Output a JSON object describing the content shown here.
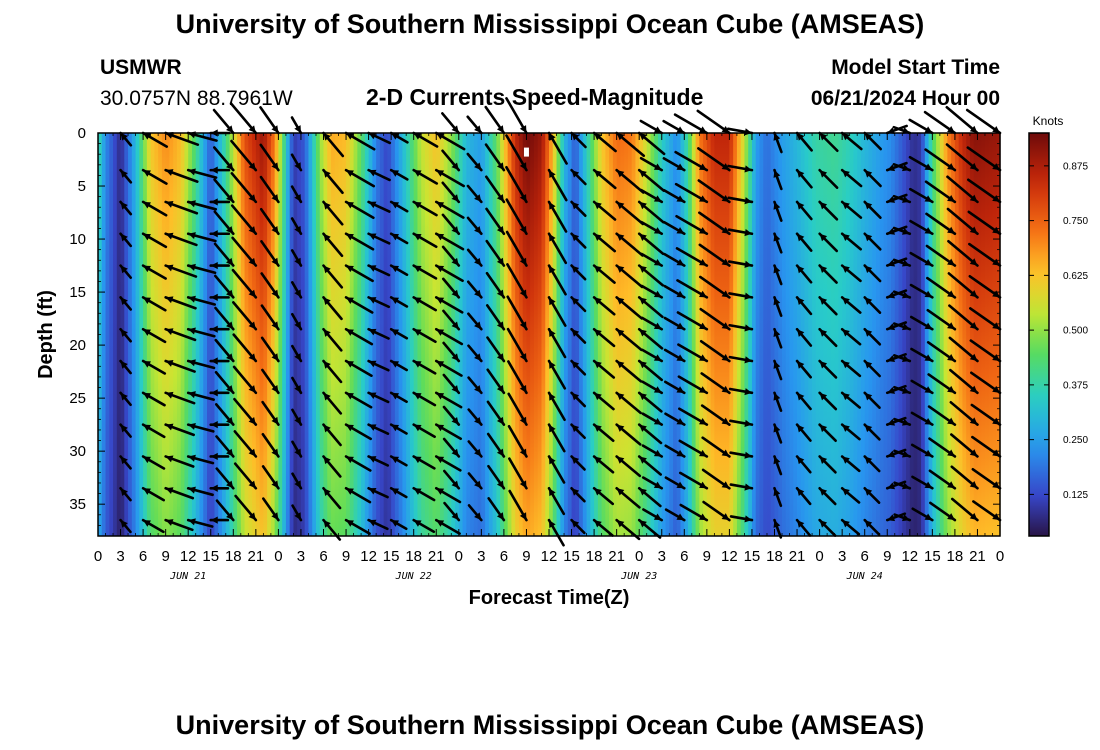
{
  "header": {
    "title": "University of Southern Mississippi Ocean Cube (AMSEAS)",
    "station": "USMWR",
    "coords": "30.0757N  88.7961W",
    "chart_label": "2-D Currents Speed-Magnitude",
    "start_label": "Model Start Time",
    "start_value": "06/21/2024 Hour 00"
  },
  "footer": {
    "title": "University of Southern Mississippi Ocean Cube (AMSEAS)"
  },
  "colors": {
    "arrow": "#000000",
    "frame": "#000000"
  },
  "chart_data": {
    "type": "heatmap",
    "title": "2-D Currents Speed-Magnitude",
    "xlabel": "Forecast Time(Z)",
    "ylabel": "Depth (ft)",
    "xlim": [
      0,
      120
    ],
    "ylim": [
      0,
      38
    ],
    "y_inverted": true,
    "x_ticks": [
      0,
      3,
      6,
      9,
      12,
      15,
      18,
      21,
      24,
      27,
      30,
      33,
      36,
      39,
      42,
      45,
      48,
      51,
      54,
      57,
      60,
      63,
      66,
      69,
      72,
      75,
      78,
      81,
      84,
      87,
      90,
      93,
      96,
      99,
      102,
      105,
      108,
      111,
      114,
      117,
      120
    ],
    "x_tick_labels": [
      "0",
      "3",
      "6",
      "9",
      "12",
      "15",
      "18",
      "21",
      "0",
      "3",
      "6",
      "9",
      "12",
      "15",
      "18",
      "21",
      "0",
      "3",
      "6",
      "9",
      "12",
      "15",
      "18",
      "21",
      "0",
      "3",
      "6",
      "9",
      "12",
      "15",
      "18",
      "21",
      "0",
      "3",
      "6",
      "9",
      "12",
      "15",
      "18",
      "21",
      "0"
    ],
    "y_ticks": [
      0,
      5,
      10,
      15,
      20,
      25,
      30,
      35
    ],
    "y_tick_labels": [
      "0",
      "5",
      "10",
      "15",
      "20",
      "25",
      "30",
      "35"
    ],
    "date_labels": [
      {
        "hour": 12,
        "label": "JUN 21"
      },
      {
        "hour": 42,
        "label": "JUN 22"
      },
      {
        "hour": 72,
        "label": "JUN 23"
      },
      {
        "hour": 102,
        "label": "JUN 24"
      }
    ],
    "colorbar": {
      "title": "Knots",
      "min": 0.03,
      "max": 0.95,
      "ticks": [
        0.125,
        0.25,
        0.375,
        0.5,
        0.625,
        0.75,
        0.875
      ],
      "tick_labels": [
        "0.125",
        "0.250",
        "0.375",
        "0.500",
        "0.625",
        "0.750",
        "0.875"
      ]
    },
    "speed_profile_surface": [
      {
        "h": 0,
        "v": 0.4
      },
      {
        "h": 1,
        "v": 0.22
      },
      {
        "h": 3,
        "v": 0.07
      },
      {
        "h": 5,
        "v": 0.3
      },
      {
        "h": 7,
        "v": 0.62
      },
      {
        "h": 9,
        "v": 0.7
      },
      {
        "h": 11,
        "v": 0.64
      },
      {
        "h": 13,
        "v": 0.42
      },
      {
        "h": 15,
        "v": 0.15
      },
      {
        "h": 17,
        "v": 0.4
      },
      {
        "h": 19.5,
        "v": 0.78
      },
      {
        "h": 22,
        "v": 0.9
      },
      {
        "h": 23.5,
        "v": 0.72
      },
      {
        "h": 25,
        "v": 0.35
      },
      {
        "h": 26,
        "v": 0.1
      },
      {
        "h": 27.5,
        "v": 0.15
      },
      {
        "h": 29.5,
        "v": 0.5
      },
      {
        "h": 31,
        "v": 0.66
      },
      {
        "h": 33,
        "v": 0.64
      },
      {
        "h": 35,
        "v": 0.45
      },
      {
        "h": 37,
        "v": 0.2
      },
      {
        "h": 38.5,
        "v": 0.12
      },
      {
        "h": 40.5,
        "v": 0.3
      },
      {
        "h": 43,
        "v": 0.55
      },
      {
        "h": 45,
        "v": 0.63
      },
      {
        "h": 47,
        "v": 0.5
      },
      {
        "h": 49,
        "v": 0.3
      },
      {
        "h": 51,
        "v": 0.25
      },
      {
        "h": 53,
        "v": 0.45
      },
      {
        "h": 55.5,
        "v": 0.85
      },
      {
        "h": 57,
        "v": 0.95
      },
      {
        "h": 59,
        "v": 0.9
      },
      {
        "h": 60.5,
        "v": 0.65
      },
      {
        "h": 62,
        "v": 0.3
      },
      {
        "h": 63.5,
        "v": 0.15
      },
      {
        "h": 65,
        "v": 0.35
      },
      {
        "h": 67,
        "v": 0.62
      },
      {
        "h": 69,
        "v": 0.74
      },
      {
        "h": 71,
        "v": 0.72
      },
      {
        "h": 73,
        "v": 0.56
      },
      {
        "h": 75,
        "v": 0.35
      },
      {
        "h": 77,
        "v": 0.22
      },
      {
        "h": 78.5,
        "v": 0.4
      },
      {
        "h": 80,
        "v": 0.72
      },
      {
        "h": 82,
        "v": 0.85
      },
      {
        "h": 84,
        "v": 0.85
      },
      {
        "h": 86,
        "v": 0.55
      },
      {
        "h": 87.5,
        "v": 0.25
      },
      {
        "h": 89,
        "v": 0.18
      },
      {
        "h": 91,
        "v": 0.25
      },
      {
        "h": 93,
        "v": 0.3
      },
      {
        "h": 95.5,
        "v": 0.38
      },
      {
        "h": 98,
        "v": 0.4
      },
      {
        "h": 100,
        "v": 0.36
      },
      {
        "h": 102,
        "v": 0.3
      },
      {
        "h": 104,
        "v": 0.25
      },
      {
        "h": 105.5,
        "v": 0.22
      },
      {
        "h": 107,
        "v": 0.15
      },
      {
        "h": 108.5,
        "v": 0.08
      },
      {
        "h": 109.5,
        "v": 0.1
      },
      {
        "h": 111,
        "v": 0.42
      },
      {
        "h": 113,
        "v": 0.7
      },
      {
        "h": 115,
        "v": 0.85
      },
      {
        "h": 116.5,
        "v": 0.92
      },
      {
        "h": 120,
        "v": 0.9
      }
    ],
    "depth_decay": 0.3,
    "vector_depths_ft": [
      0,
      3.5,
      6.5,
      9.5,
      12.5,
      15.5,
      18.5,
      21.5,
      24.5,
      27.5,
      30.5,
      33.5,
      36.5
    ],
    "vector_hours": [
      3,
      6,
      9,
      12,
      15,
      18,
      21,
      24,
      27,
      30,
      33,
      36,
      39,
      42,
      45,
      48,
      51,
      54,
      57,
      60,
      63,
      66,
      69,
      72,
      75,
      78,
      81,
      84,
      87,
      90,
      93,
      96,
      99,
      102,
      105,
      108,
      111,
      114,
      117,
      120
    ],
    "vector_direction_deg_by_hour": [
      {
        "h": 3,
        "d": 320
      },
      {
        "h": 6,
        "d": 300
      },
      {
        "h": 9,
        "d": 290
      },
      {
        "h": 12,
        "d": 285
      },
      {
        "h": 15,
        "d": 270
      },
      {
        "h": 18,
        "d": 140
      },
      {
        "h": 21,
        "d": 140
      },
      {
        "h": 24,
        "d": 145
      },
      {
        "h": 27,
        "d": 150
      },
      {
        "h": 30,
        "d": 320
      },
      {
        "h": 33,
        "d": 300
      },
      {
        "h": 36,
        "d": 295
      },
      {
        "h": 39,
        "d": 300
      },
      {
        "h": 42,
        "d": 300
      },
      {
        "h": 45,
        "d": 300
      },
      {
        "h": 48,
        "d": 140
      },
      {
        "h": 51,
        "d": 140
      },
      {
        "h": 54,
        "d": 145
      },
      {
        "h": 57,
        "d": 150
      },
      {
        "h": 60,
        "d": 330
      },
      {
        "h": 63,
        "d": 315
      },
      {
        "h": 66,
        "d": 310
      },
      {
        "h": 69,
        "d": 310
      },
      {
        "h": 72,
        "d": 310
      },
      {
        "h": 75,
        "d": 120
      },
      {
        "h": 78,
        "d": 120
      },
      {
        "h": 81,
        "d": 120
      },
      {
        "h": 84,
        "d": 125
      },
      {
        "h": 87,
        "d": 100
      },
      {
        "h": 90,
        "d": 340
      },
      {
        "h": 93,
        "d": 320
      },
      {
        "h": 96,
        "d": 315
      },
      {
        "h": 99,
        "d": 310
      },
      {
        "h": 102,
        "d": 315
      },
      {
        "h": 105,
        "d": 250
      },
      {
        "h": 108,
        "d": 110
      },
      {
        "h": 111,
        "d": 120
      },
      {
        "h": 114,
        "d": 125
      },
      {
        "h": 117,
        "d": 130
      },
      {
        "h": 120,
        "d": 125
      }
    ],
    "annotations": [
      {
        "type": "missing-cell-marker",
        "hour": 57,
        "depth_ft": 1.8
      }
    ]
  }
}
